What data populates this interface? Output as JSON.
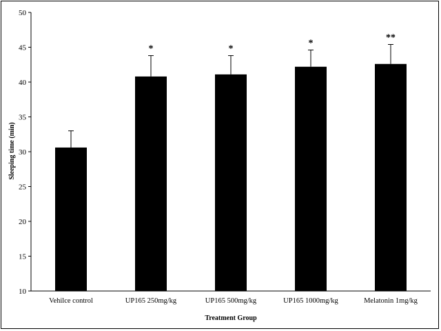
{
  "chart_data": {
    "type": "bar",
    "title": "",
    "xlabel": "Treatment Group",
    "ylabel": "Sleeping time (min)",
    "ylim": [
      10,
      50
    ],
    "yticks": [
      10,
      15,
      20,
      25,
      30,
      35,
      40,
      45,
      50
    ],
    "categories": [
      "Vehilce control",
      "UP165 250mg/kg",
      "UP165 500mg/kg",
      "UP165 1000mg/kg",
      "Melatonin 1mg/kg"
    ],
    "values": [
      30.6,
      40.8,
      41.1,
      42.2,
      42.6
    ],
    "error_plus": [
      2.4,
      3.0,
      2.7,
      2.4,
      2.8
    ],
    "significance": [
      "",
      "*",
      "*",
      "*",
      "**"
    ],
    "grid": false,
    "bar_color": "#000000"
  }
}
